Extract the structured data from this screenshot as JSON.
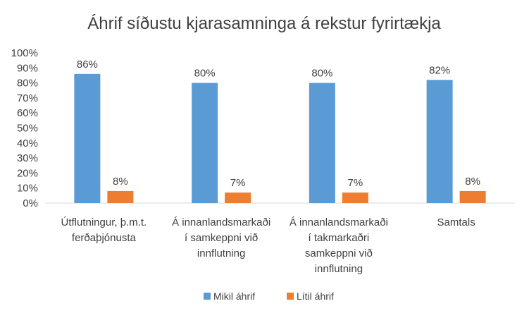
{
  "chart_data": {
    "type": "bar",
    "title": "Áhrif síðustu kjarasamninga á rekstur fyrirtækja",
    "xlabel": "",
    "ylabel": "",
    "ylim": [
      0,
      1
    ],
    "y_ticks": [
      "0%",
      "10%",
      "20%",
      "30%",
      "40%",
      "50%",
      "60%",
      "70%",
      "80%",
      "90%",
      "100%"
    ],
    "grid": false,
    "legend_position": "bottom",
    "categories": [
      [
        "Útflutningur, þ.m.t.",
        "ferðaþjónusta"
      ],
      [
        "Á innanlandsmarkaði",
        "í samkeppni við",
        "innflutning"
      ],
      [
        "Á innanlandsmarkaði",
        "í takmarkaðri",
        "samkeppni við",
        "innflutning"
      ],
      [
        "Samtals"
      ]
    ],
    "series": [
      {
        "name": "Mikil áhrif",
        "color": "#5B9BD5",
        "values": [
          0.86,
          0.8,
          0.8,
          0.82
        ],
        "labels": [
          "86%",
          "80%",
          "80%",
          "82%"
        ]
      },
      {
        "name": "Lítil áhrif",
        "color": "#ED7D31",
        "values": [
          0.08,
          0.07,
          0.07,
          0.08
        ],
        "labels": [
          "8%",
          "7%",
          "7%",
          "8%"
        ]
      }
    ]
  }
}
